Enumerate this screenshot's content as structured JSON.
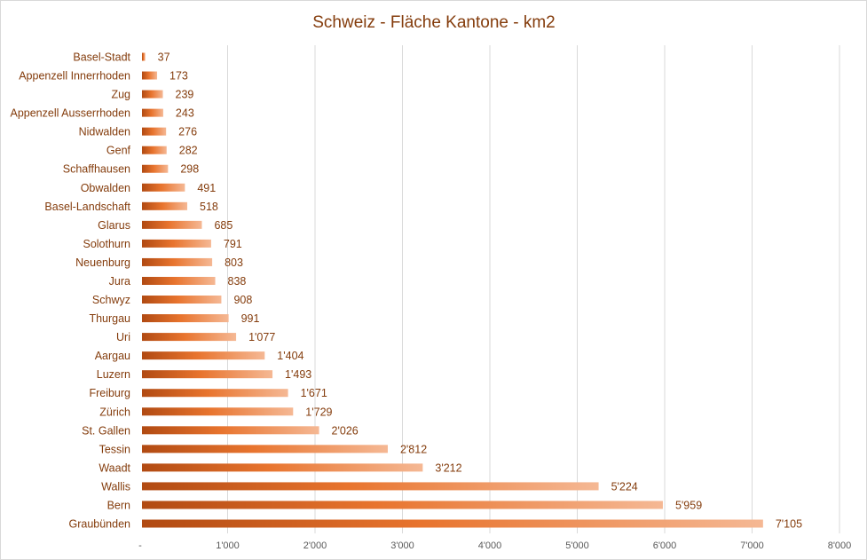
{
  "chart_data": {
    "type": "bar",
    "orientation": "horizontal",
    "title": "Schweiz - Fläche Kantone - km2",
    "xlabel": "",
    "ylabel": "",
    "xlim": [
      0,
      8000
    ],
    "x_ticks": [
      0,
      1000,
      2000,
      3000,
      4000,
      5000,
      6000,
      7000,
      8000
    ],
    "x_tick_labels": [
      "-",
      "1'000",
      "2'000",
      "3'000",
      "4'000",
      "5'000",
      "6'000",
      "7'000",
      "8'000"
    ],
    "grid": "vertical",
    "legend": "none",
    "categories": [
      "Basel-Stadt",
      "Appenzell Innerrhoden",
      "Zug",
      "Appenzell Ausserrhoden",
      "Nidwalden",
      "Genf",
      "Schaffhausen",
      "Obwalden",
      "Basel-Landschaft",
      "Glarus",
      "Solothurn",
      "Neuenburg",
      "Jura",
      "Schwyz",
      "Thurgau",
      "Uri",
      "Aargau",
      "Luzern",
      "Freiburg",
      "Zürich",
      "St. Gallen",
      "Tessin",
      "Waadt",
      "Wallis",
      "Bern",
      "Graubünden"
    ],
    "values": [
      37,
      173,
      239,
      243,
      276,
      282,
      298,
      491,
      518,
      685,
      791,
      803,
      838,
      908,
      991,
      1077,
      1404,
      1493,
      1671,
      1729,
      2026,
      2812,
      3212,
      5224,
      5959,
      7105
    ],
    "value_labels": [
      "37",
      "173",
      "239",
      "243",
      "276",
      "282",
      "298",
      "491",
      "518",
      "685",
      "791",
      "803",
      "838",
      "908",
      "991",
      "1'077",
      "1'404",
      "1'493",
      "1'671",
      "1'729",
      "2'026",
      "2'812",
      "3'212",
      "5'224",
      "5'959",
      "7'105"
    ],
    "colors": {
      "title": "#843c0c",
      "category_label": "#843c0c",
      "value_label": "#843c0c",
      "tick_label": "#595959",
      "grid": "#d9d9d9",
      "bar_gradient": [
        "#b14a12",
        "#e8742e",
        "#f5b894"
      ]
    }
  }
}
